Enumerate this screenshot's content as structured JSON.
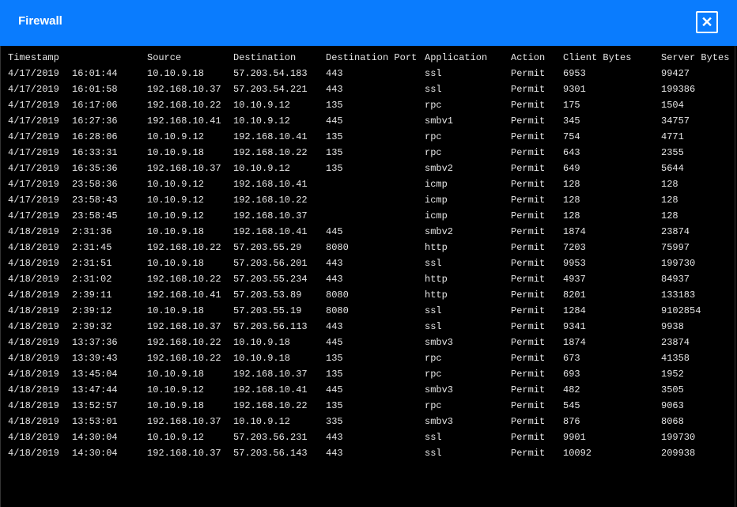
{
  "window": {
    "title": "Firewall",
    "close_icon": "close-x-icon",
    "accent": "#0a7cfe"
  },
  "table": {
    "headers": [
      "Timestamp",
      "",
      "Source",
      "Destination",
      "Destination Port",
      "Application",
      "Action",
      "Client Bytes",
      "Server Bytes"
    ],
    "rows": [
      [
        "4/17/2019",
        "16:01:44",
        "10.10.9.18",
        "57.203.54.183",
        "443",
        "ssl",
        "Permit",
        "6953",
        "99427"
      ],
      [
        "4/17/2019",
        "16:01:58",
        "192.168.10.37",
        "57.203.54.221",
        "443",
        "ssl",
        "Permit",
        "9301",
        "199386"
      ],
      [
        "4/17/2019",
        "16:17:06",
        "192.168.10.22",
        "10.10.9.12",
        "135",
        "rpc",
        "Permit",
        "175",
        "1504"
      ],
      [
        "4/17/2019",
        "16:27:36",
        "192.168.10.41",
        "10.10.9.12",
        "445",
        "smbv1",
        "Permit",
        "345",
        "34757"
      ],
      [
        "4/17/2019",
        "16:28:06",
        "10.10.9.12",
        "192.168.10.41",
        "135",
        "rpc",
        "Permit",
        "754",
        "4771"
      ],
      [
        "4/17/2019",
        "16:33:31",
        "10.10.9.18",
        "192.168.10.22",
        "135",
        "rpc",
        "Permit",
        "643",
        "2355"
      ],
      [
        "4/17/2019",
        "16:35:36",
        "192.168.10.37",
        "10.10.9.12",
        "135",
        "smbv2",
        "Permit",
        "649",
        "5644"
      ],
      [
        "4/17/2019",
        "23:58:36",
        "10.10.9.12",
        "192.168.10.41",
        "",
        "icmp",
        "Permit",
        "128",
        "128"
      ],
      [
        "4/17/2019",
        "23:58:43",
        "10.10.9.12",
        "192.168.10.22",
        "",
        "icmp",
        "Permit",
        "128",
        "128"
      ],
      [
        "4/17/2019",
        "23:58:45",
        "10.10.9.12",
        "192.168.10.37",
        "",
        "icmp",
        "Permit",
        "128",
        "128"
      ],
      [
        "4/18/2019",
        "2:31:36",
        "10.10.9.18",
        "192.168.10.41",
        "445",
        "smbv2",
        "Permit",
        "1874",
        "23874"
      ],
      [
        "4/18/2019",
        "2:31:45",
        "192.168.10.22",
        "57.203.55.29",
        "8080",
        "http",
        "Permit",
        "7203",
        "75997"
      ],
      [
        "4/18/2019",
        "2:31:51",
        "10.10.9.18",
        "57.203.56.201",
        "443",
        "ssl",
        "Permit",
        "9953",
        "199730"
      ],
      [
        "4/18/2019",
        "2:31:02",
        "192.168.10.22",
        "57.203.55.234",
        "443",
        "http",
        "Permit",
        "4937",
        "84937"
      ],
      [
        "4/18/2019",
        "2:39:11",
        "192.168.10.41",
        "57.203.53.89",
        "8080",
        "http",
        "Permit",
        "8201",
        "133183"
      ],
      [
        "4/18/2019",
        "2:39:12",
        "10.10.9.18",
        "57.203.55.19",
        "8080",
        "ssl",
        "Permit",
        "1284",
        "9102854"
      ],
      [
        "4/18/2019",
        "2:39:32",
        "192.168.10.37",
        "57.203.56.113",
        "443",
        "ssl",
        "Permit",
        "9341",
        "9938"
      ],
      [
        "4/18/2019",
        "13:37:36",
        "192.168.10.22",
        "10.10.9.18",
        "445",
        "smbv3",
        "Permit",
        "1874",
        "23874"
      ],
      [
        "4/18/2019",
        "13:39:43",
        "192.168.10.22",
        "10.10.9.18",
        "135",
        "rpc",
        "Permit",
        "673",
        "41358"
      ],
      [
        "4/18/2019",
        "13:45:04",
        "10.10.9.18",
        "192.168.10.37",
        "135",
        "rpc",
        "Permit",
        "693",
        "1952"
      ],
      [
        "4/18/2019",
        "13:47:44",
        "10.10.9.12",
        "192.168.10.41",
        "445",
        "smbv3",
        "Permit",
        "482",
        "3505"
      ],
      [
        "4/18/2019",
        "13:52:57",
        "10.10.9.18",
        "192.168.10.22",
        "135",
        "rpc",
        "Permit",
        "545",
        "9063"
      ],
      [
        "4/18/2019",
        "13:53:01",
        "192.168.10.37",
        "10.10.9.12",
        "335",
        "smbv3",
        "Permit",
        "876",
        "8068"
      ],
      [
        "4/18/2019",
        "14:30:04",
        "10.10.9.12",
        "57.203.56.231",
        "443",
        "ssl",
        "Permit",
        "9901",
        "199730"
      ],
      [
        "4/18/2019",
        "14:30:04",
        "192.168.10.37",
        "57.203.56.143",
        "443",
        "ssl",
        "Permit",
        "10092",
        "209938"
      ]
    ]
  }
}
